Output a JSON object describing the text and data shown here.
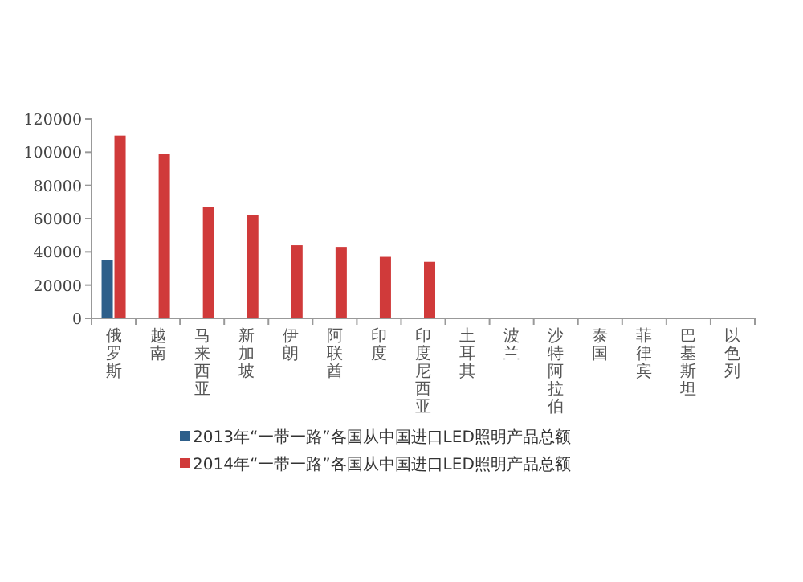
{
  "chart_data": {
    "type": "bar",
    "categories": [
      "俄罗斯",
      "越南",
      "马来西亚",
      "新加坡",
      "伊朗",
      "阿联酋",
      "印度",
      "印度尼西亚",
      "土耳其",
      "波兰",
      "沙特阿拉伯",
      "泰国",
      "菲律宾",
      "巴基斯坦",
      "以色列"
    ],
    "series": [
      {
        "name": "2013年“一带一路”各国从中国进口LED照明产品总额",
        "color": "#2e5f8a",
        "values": [
          35000,
          null,
          null,
          null,
          null,
          null,
          null,
          null,
          null,
          null,
          null,
          null,
          null,
          null,
          null
        ]
      },
      {
        "name": "2014年“一带一路”各国从中国进口LED照明产品总额",
        "color": "#d03a3a",
        "values": [
          110000,
          99000,
          67000,
          62000,
          44000,
          43000,
          37000,
          34000,
          null,
          null,
          null,
          null,
          null,
          null,
          null
        ]
      }
    ],
    "ylim": [
      0,
      120000
    ],
    "yticks": [
      0,
      20000,
      40000,
      60000,
      80000,
      100000,
      120000
    ],
    "legend": "bottom"
  }
}
